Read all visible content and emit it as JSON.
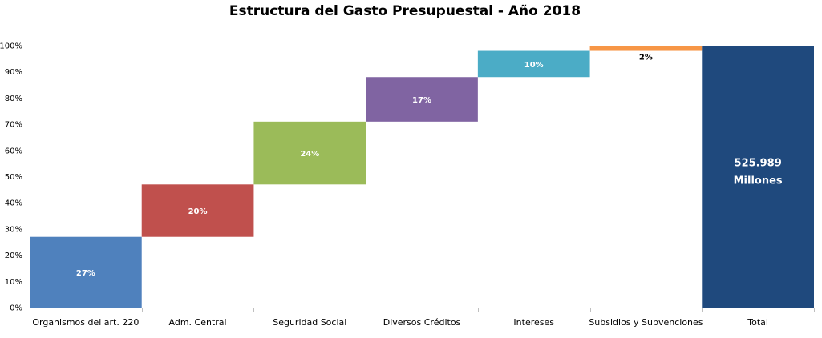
{
  "chart_data": {
    "type": "bar",
    "subtype": "waterfall",
    "title": "Estructura del Gasto Presupuestal - Año 2018",
    "xlabel": "",
    "ylabel": "",
    "ylim": [
      0,
      100
    ],
    "y_ticks": [
      "0%",
      "10%",
      "20%",
      "30%",
      "40%",
      "50%",
      "60%",
      "70%",
      "80%",
      "90%",
      "100%"
    ],
    "grid": false,
    "legend": "none",
    "categories": [
      "Organismos del art. 220",
      "Adm. Central",
      "Seguridad Social",
      "Diversos Créditos",
      "Intereses",
      "Subsidios y Subvenciones",
      "Total"
    ],
    "values": [
      27,
      20,
      24,
      17,
      10,
      2,
      100
    ],
    "labels": [
      "27%",
      "20%",
      "24%",
      "17%",
      "10%",
      "2%"
    ],
    "total_label": [
      "525.989",
      "Millones"
    ],
    "colors": [
      "#4f81bd",
      "#c0504d",
      "#9bbb59",
      "#8064a2",
      "#4bacc6",
      "#f79646",
      "#1f497d"
    ],
    "label_colors": [
      "#ffffff",
      "#ffffff",
      "#ffffff",
      "#ffffff",
      "#ffffff",
      "#000000",
      "#ffffff"
    ]
  }
}
